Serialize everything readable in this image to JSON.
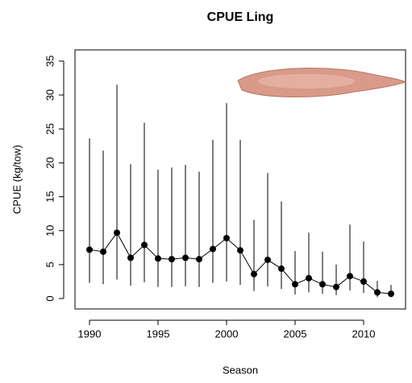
{
  "chart_data": {
    "type": "line",
    "title": "CPUE Ling",
    "xlabel": "Season",
    "ylabel": "CPUE (kg/tow)",
    "x": [
      1990,
      1991,
      1992,
      1993,
      1994,
      1995,
      1996,
      1997,
      1998,
      1999,
      2000,
      2001,
      2002,
      2003,
      2004,
      2005,
      2006,
      2007,
      2008,
      2009,
      2010,
      2011,
      2012
    ],
    "series": [
      {
        "color": "#000000",
        "values": [
          7.2,
          6.9,
          9.7,
          6.0,
          7.9,
          5.9,
          5.8,
          6.0,
          5.8,
          7.3,
          8.9,
          7.1,
          3.6,
          5.7,
          4.4,
          2.1,
          3.0,
          2.1,
          1.7,
          3.3,
          2.5,
          0.9,
          0.7
        ],
        "lower": [
          2.3,
          2.1,
          2.8,
          1.9,
          2.4,
          1.7,
          1.7,
          1.8,
          1.7,
          2.3,
          2.5,
          2.0,
          1.1,
          1.8,
          1.4,
          0.6,
          0.9,
          0.7,
          0.5,
          1.2,
          0.8,
          0.2,
          0.2
        ],
        "upper": [
          23.6,
          21.8,
          31.5,
          19.8,
          25.9,
          19.0,
          19.3,
          19.7,
          18.7,
          23.4,
          28.8,
          23.4,
          11.6,
          18.5,
          14.3,
          7.0,
          9.7,
          6.9,
          5.0,
          10.9,
          8.4,
          2.6,
          2.0
        ]
      }
    ],
    "xlim": [
      1988.94,
      2013.06
    ],
    "ylim": [
      -1.54,
      36.65
    ],
    "xticks": [
      1990,
      1995,
      2000,
      2005,
      2010
    ],
    "yticks": [
      0,
      5,
      10,
      15,
      20,
      25,
      30,
      35
    ]
  }
}
